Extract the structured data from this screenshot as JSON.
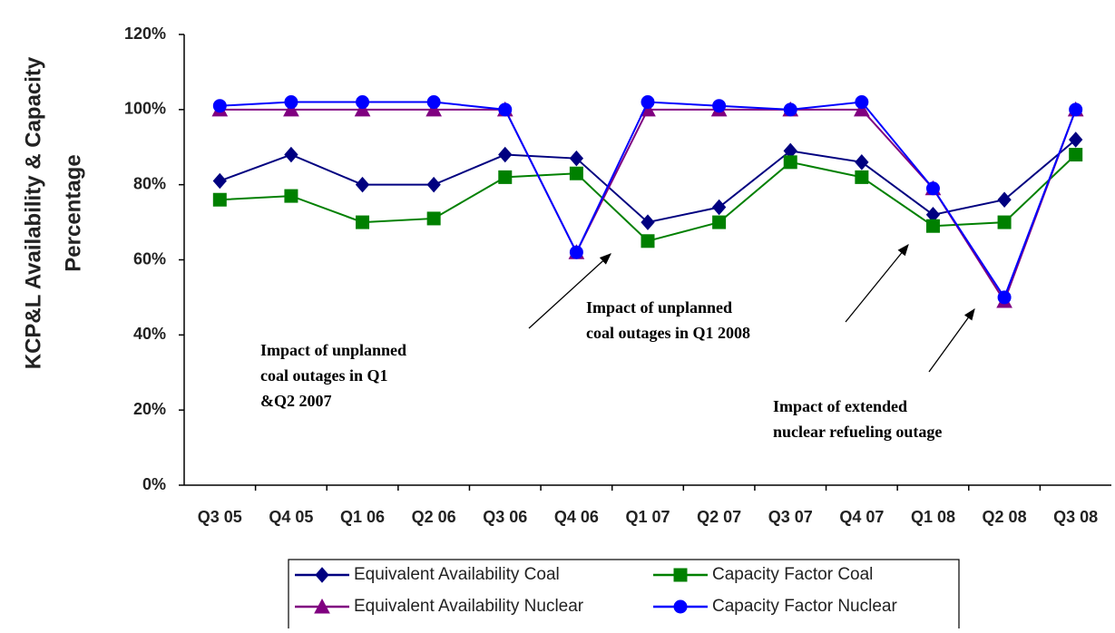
{
  "chart_data": {
    "type": "line",
    "ylabel": [
      "KCP&L Availability & Capacity",
      "Percentage"
    ],
    "categories": [
      "Q3 05",
      "Q4 05",
      "Q1 06",
      "Q2 06",
      "Q3 06",
      "Q4 06",
      "Q1 07",
      "Q2 07",
      "Q3 07",
      "Q4 07",
      "Q1 08",
      "Q2 08",
      "Q3 08"
    ],
    "series": [
      {
        "name": "Equivalent Availability Coal",
        "color": "#000080",
        "marker": "diamond",
        "values": [
          81,
          88,
          80,
          80,
          88,
          87,
          70,
          74,
          89,
          86,
          72,
          76,
          92
        ]
      },
      {
        "name": "Capacity Factor Coal",
        "color": "#008000",
        "marker": "square",
        "values": [
          76,
          77,
          70,
          71,
          82,
          83,
          65,
          70,
          86,
          82,
          69,
          70,
          88
        ]
      },
      {
        "name": "Equivalent Availability Nuclear",
        "color": "#800080",
        "marker": "triangle",
        "values": [
          100,
          100,
          100,
          100,
          100,
          62,
          100,
          100,
          100,
          100,
          79,
          49,
          100
        ]
      },
      {
        "name": "Capacity Factor Nuclear",
        "color": "#0000ff",
        "marker": "circle",
        "values": [
          101,
          102,
          102,
          102,
          100,
          62,
          102,
          101,
          100,
          102,
          79,
          50,
          100
        ]
      }
    ],
    "ylim": [
      0,
      120
    ],
    "yticks": [
      {
        "value": 0,
        "label": "0%"
      },
      {
        "value": 20,
        "label": "20%"
      },
      {
        "value": 40,
        "label": "40%"
      },
      {
        "value": 60,
        "label": "60%"
      },
      {
        "value": 80,
        "label": "80%"
      },
      {
        "value": 100,
        "label": "100%"
      },
      {
        "value": 120,
        "label": "120%"
      }
    ],
    "grid": false,
    "annotations": [
      {
        "lines": [
          "Impact of unplanned",
          "coal outages in Q1",
          "&Q2 2007"
        ]
      },
      {
        "lines": [
          "Impact of unplanned",
          "coal outages in Q1 2008"
        ]
      },
      {
        "lines": [
          "Impact of extended",
          "nuclear refueling outage"
        ]
      }
    ]
  }
}
